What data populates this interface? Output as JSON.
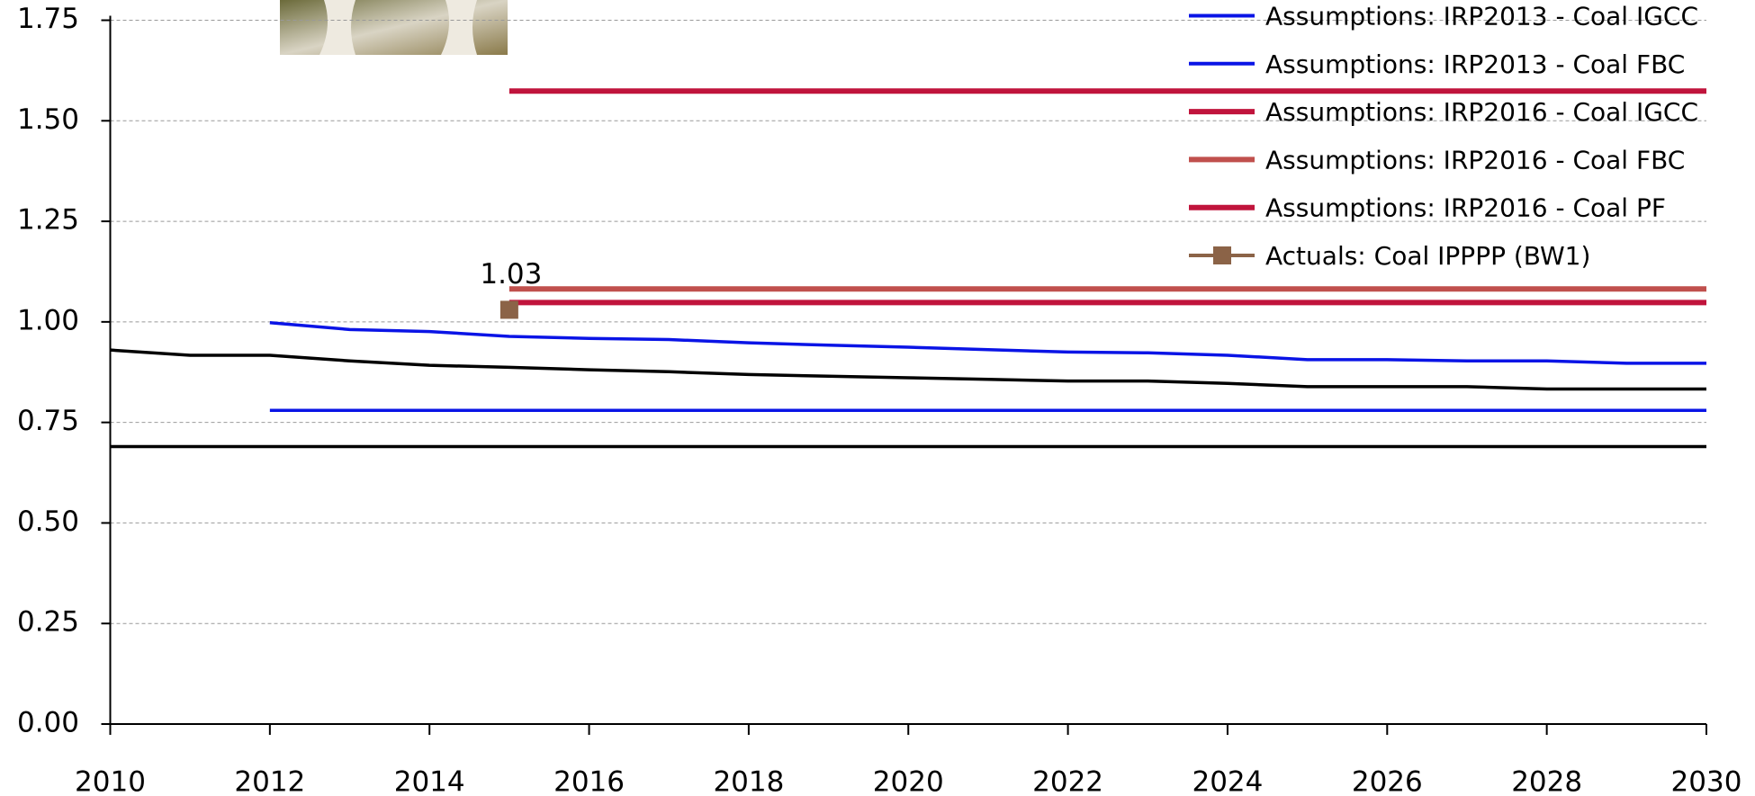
{
  "chart_data": {
    "type": "line",
    "x": [
      2010,
      2011,
      2012,
      2013,
      2014,
      2015,
      2016,
      2017,
      2018,
      2019,
      2020,
      2021,
      2022,
      2023,
      2024,
      2025,
      2026,
      2027,
      2028,
      2029,
      2030
    ],
    "series": [
      {
        "color": "#000000",
        "values": [
          0.93,
          0.917,
          0.917,
          0.903,
          0.892,
          0.887,
          0.881,
          0.876,
          0.869,
          0.865,
          0.861,
          0.857,
          0.853,
          0.853,
          0.847,
          0.839,
          0.839,
          0.839,
          0.833,
          0.833,
          0.833
        ]
      },
      {
        "color": "#000000",
        "values": [
          0.69,
          0.69,
          0.69,
          0.69,
          0.69,
          0.69,
          0.69,
          0.69,
          0.69,
          0.69,
          0.69,
          0.69,
          0.69,
          0.69,
          0.69,
          0.69,
          0.69,
          0.69,
          0.69,
          0.69,
          0.69
        ]
      },
      {
        "name": "Assumptions: IRP2013 - Coal IGCC",
        "color": "#0a14e6",
        "values": [
          null,
          null,
          0.998,
          0.981,
          0.976,
          0.964,
          0.959,
          0.956,
          0.948,
          0.942,
          0.937,
          0.931,
          0.925,
          0.923,
          0.917,
          0.906,
          0.906,
          0.903,
          0.903,
          0.897,
          0.897
        ]
      },
      {
        "name": "Assumptions: IRP2013 - Coal FBC",
        "color": "#0a14e6",
        "values": [
          null,
          null,
          0.78,
          0.78,
          0.78,
          0.78,
          0.78,
          0.78,
          0.78,
          0.78,
          0.78,
          0.78,
          0.78,
          0.78,
          0.78,
          0.78,
          0.78,
          0.78,
          0.78,
          0.78,
          0.78
        ]
      },
      {
        "name": "Assumptions: IRP2016 - Coal IGCC",
        "color": "#c0143c",
        "width": 6,
        "values": [
          null,
          null,
          null,
          null,
          null,
          1.574,
          1.574,
          1.574,
          1.574,
          1.574,
          1.574,
          1.574,
          1.574,
          1.574,
          1.574,
          1.574,
          1.574,
          1.574,
          1.574,
          1.574,
          1.574
        ]
      },
      {
        "name": "Assumptions: IRP2016 - Coal FBC",
        "color": "#c0504d",
        "width": 6,
        "values": [
          null,
          null,
          null,
          null,
          null,
          1.082,
          1.082,
          1.082,
          1.082,
          1.082,
          1.082,
          1.082,
          1.082,
          1.082,
          1.082,
          1.082,
          1.082,
          1.082,
          1.082,
          1.082,
          1.082
        ]
      },
      {
        "name": "Assumptions: IRP2016 - Coal PF",
        "color": "#c0143c",
        "width": 6,
        "values": [
          null,
          null,
          null,
          null,
          null,
          1.048,
          1.048,
          1.048,
          1.048,
          1.048,
          1.048,
          1.048,
          1.048,
          1.048,
          1.048,
          1.048,
          1.048,
          1.048,
          1.048,
          1.048,
          1.048
        ]
      },
      {
        "name": "Actuals: Coal IPPPP (BW1)",
        "color": "#8b6347",
        "marker": "square",
        "values": [
          null,
          null,
          null,
          null,
          null,
          1.03,
          null,
          null,
          null,
          null,
          null,
          null,
          null,
          null,
          null,
          null,
          null,
          null,
          null,
          null,
          null
        ]
      }
    ],
    "xlim": [
      2010,
      2030
    ],
    "xticks": [
      2010,
      2012,
      2014,
      2016,
      2018,
      2020,
      2022,
      2024,
      2026,
      2028,
      2030
    ],
    "ylim": [
      0,
      1.75
    ],
    "yticks": [
      {
        "value": 0,
        "label": "0.00"
      },
      {
        "value": 0.25,
        "label": "0.25"
      },
      {
        "value": 0.5,
        "label": "0.50"
      },
      {
        "value": 0.75,
        "label": "0.75"
      },
      {
        "value": 1,
        "label": "1.00"
      },
      {
        "value": 1.25,
        "label": "1.25"
      },
      {
        "value": 1.5,
        "label": "1.50"
      },
      {
        "value": 1.75,
        "label": "1.75"
      }
    ],
    "grid": true
  }
}
